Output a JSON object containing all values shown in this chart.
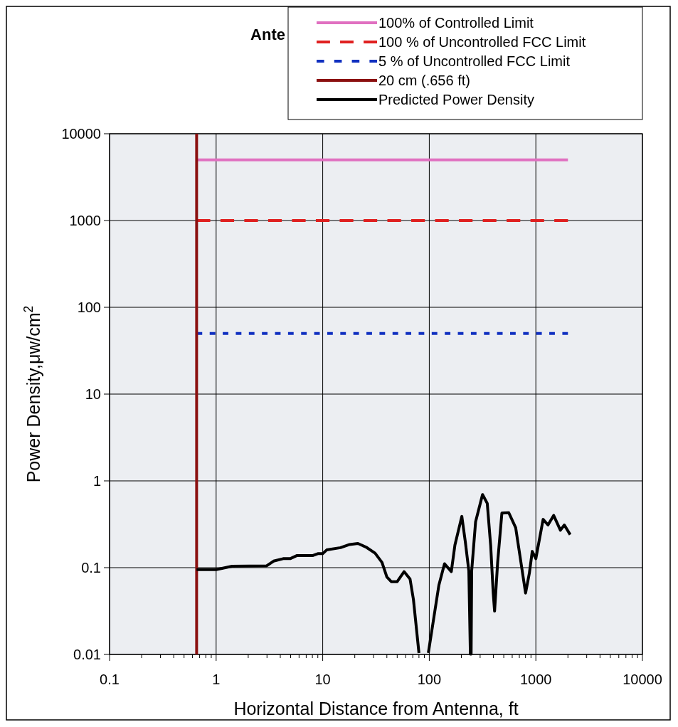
{
  "chart_data": {
    "type": "line",
    "title": "Ante",
    "xlabel": "Horizontal Distance from Antenna, ft",
    "ylabel": "Power Density,μw/cm$^{2}$",
    "log": "xy",
    "grid": true,
    "legend": "top right",
    "xlim": [
      0.1,
      10000
    ],
    "ylim": [
      0.01,
      10000
    ],
    "xticks": [
      0.1,
      1,
      10,
      100,
      1000,
      10000
    ],
    "yticks": [
      0.01,
      0.1,
      1,
      10,
      100,
      1000,
      10000
    ],
    "series": [
      {
        "name": "100% of Controlled Limit",
        "color": "#e070c0",
        "line_style": "solid",
        "x": [
          0.656,
          2000
        ],
        "values": [
          5000,
          5000
        ]
      },
      {
        "name": "100 % of Uncontrolled FCC Limit",
        "color": "#e02020",
        "line_style": "dashed",
        "x": [
          0.656,
          2000
        ],
        "values": [
          1000,
          1000
        ]
      },
      {
        "name": "5 % of Uncontrolled FCC Limit",
        "color": "#1030c0",
        "line_style": "dotted",
        "x": [
          0.656,
          2000
        ],
        "values": [
          50,
          50
        ]
      },
      {
        "name": "20 cm (.656 ft)",
        "color": "#8b1010",
        "line_style": "solid",
        "x": [
          0.656,
          0.656
        ],
        "values": [
          0.01,
          10000
        ]
      },
      {
        "name": "Predicted Power Density",
        "color": "#000000",
        "line_style": "solid",
        "x": [
          0.656,
          1,
          1.41,
          2.98,
          3.46,
          4.26,
          4.95,
          5.75,
          8.1,
          9,
          10,
          10.9,
          14.7,
          17.9,
          21.4,
          25.6,
          31,
          36,
          40,
          44,
          50,
          58,
          66,
          71,
          80,
          88,
          98,
          108,
          123,
          139,
          161,
          174,
          202,
          218,
          235,
          243,
          247,
          250,
          272,
          316,
          350,
          377,
          398,
          410,
          438,
          480,
          557,
          647,
          801,
          870,
          925,
          1000,
          1170,
          1300,
          1470,
          1700,
          1850,
          2100
        ],
        "values": [
          0.095,
          0.095,
          0.104,
          0.105,
          0.119,
          0.127,
          0.127,
          0.138,
          0.138,
          0.145,
          0.145,
          0.16,
          0.17,
          0.185,
          0.19,
          0.172,
          0.147,
          0.115,
          0.078,
          0.069,
          0.069,
          0.09,
          0.074,
          0.043,
          0.0104,
          null,
          0.0104,
          0.0224,
          0.0627,
          0.111,
          0.09,
          0.182,
          0.39,
          0.197,
          0.092,
          0.0101,
          0.0101,
          0.092,
          0.338,
          0.695,
          0.55,
          0.178,
          0.051,
          0.0316,
          0.115,
          0.425,
          0.43,
          0.288,
          0.051,
          0.087,
          0.154,
          0.127,
          0.36,
          0.31,
          0.4,
          0.27,
          0.31,
          0.24
        ]
      }
    ]
  }
}
